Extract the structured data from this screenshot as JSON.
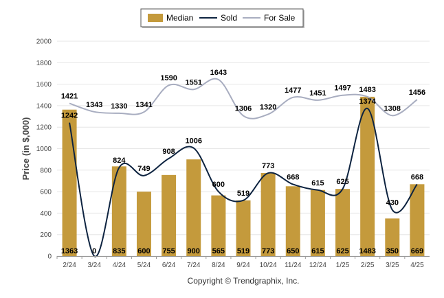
{
  "chart_data": {
    "type": "bar",
    "categories": [
      "2/24",
      "3/24",
      "4/24",
      "5/24",
      "6/24",
      "7/24",
      "8/24",
      "9/24",
      "10/24",
      "11/24",
      "12/24",
      "1/25",
      "2/25",
      "3/25",
      "4/25"
    ],
    "series": [
      {
        "name": "Median",
        "kind": "bar",
        "color": "#c49a3c",
        "values": [
          1363,
          0,
          835,
          600,
          755,
          900,
          565,
          519,
          773,
          650,
          615,
          625,
          1483,
          350,
          669
        ]
      },
      {
        "name": "Sold",
        "kind": "line",
        "color": "#0d2340",
        "values": [
          1242,
          0,
          824,
          749,
          908,
          1006,
          600,
          519,
          773,
          668,
          615,
          625,
          1374,
          430,
          668
        ]
      },
      {
        "name": "For Sale",
        "kind": "line",
        "color": "#a8adc0",
        "values": [
          1421,
          1343,
          1330,
          1341,
          1590,
          1551,
          1643,
          1306,
          1320,
          1477,
          1451,
          1497,
          1483,
          1308,
          1456
        ]
      }
    ],
    "ylabel": "Price (in $,000)",
    "ylim": [
      0,
      2000
    ],
    "yticks": [
      0,
      200,
      400,
      600,
      800,
      1000,
      1200,
      1400,
      1600,
      1800,
      2000
    ],
    "grid": true,
    "legend": "top-center",
    "footer": "Copyright © Trendgraphix, Inc."
  }
}
